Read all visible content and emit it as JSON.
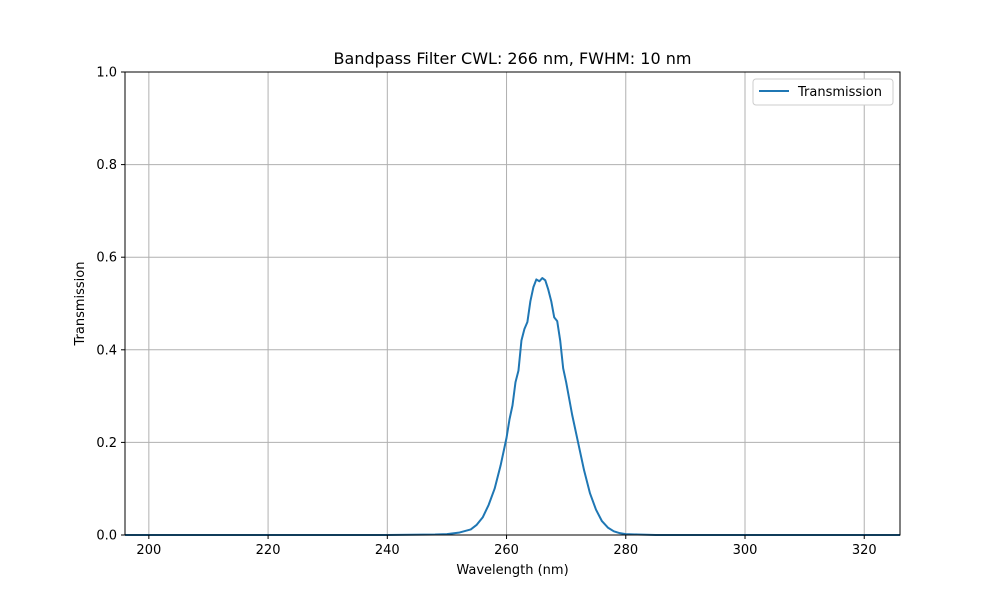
{
  "chart_data": {
    "type": "line",
    "title": "Bandpass Filter CWL: 266 nm, FWHM: 10 nm",
    "xlabel": "Wavelength (nm)",
    "ylabel": "Transmission",
    "xlim": [
      196,
      326
    ],
    "ylim": [
      0,
      1
    ],
    "xticks": [
      200,
      220,
      240,
      260,
      280,
      300,
      320
    ],
    "yticks": [
      0.0,
      0.2,
      0.4,
      0.6,
      0.8,
      1.0
    ],
    "xtick_labels": [
      "200",
      "220",
      "240",
      "260",
      "280",
      "300",
      "320"
    ],
    "ytick_labels": [
      "0.0",
      "0.2",
      "0.4",
      "0.6",
      "0.8",
      "1.0"
    ],
    "grid": true,
    "legend_position": "top-right",
    "series": [
      {
        "name": "Transmission",
        "color": "#1f77b4",
        "x": [
          196,
          240,
          248,
          250,
          252,
          254,
          255,
          256,
          257,
          258,
          259,
          260,
          260.5,
          261,
          261.5,
          262,
          262.5,
          263,
          263.5,
          264,
          264.5,
          265,
          265.5,
          266,
          266.5,
          267,
          267.5,
          268,
          268.5,
          269,
          269.5,
          270,
          271,
          272,
          273,
          274,
          275,
          276,
          277,
          278,
          279,
          280,
          282,
          285,
          326
        ],
        "y": [
          0.0,
          0.0,
          0.001,
          0.002,
          0.005,
          0.012,
          0.022,
          0.038,
          0.065,
          0.1,
          0.15,
          0.21,
          0.25,
          0.28,
          0.33,
          0.355,
          0.42,
          0.445,
          0.46,
          0.505,
          0.535,
          0.552,
          0.548,
          0.555,
          0.55,
          0.53,
          0.505,
          0.47,
          0.462,
          0.42,
          0.36,
          0.33,
          0.26,
          0.2,
          0.14,
          0.09,
          0.055,
          0.03,
          0.016,
          0.008,
          0.004,
          0.002,
          0.001,
          0.0,
          0.0
        ]
      }
    ]
  }
}
